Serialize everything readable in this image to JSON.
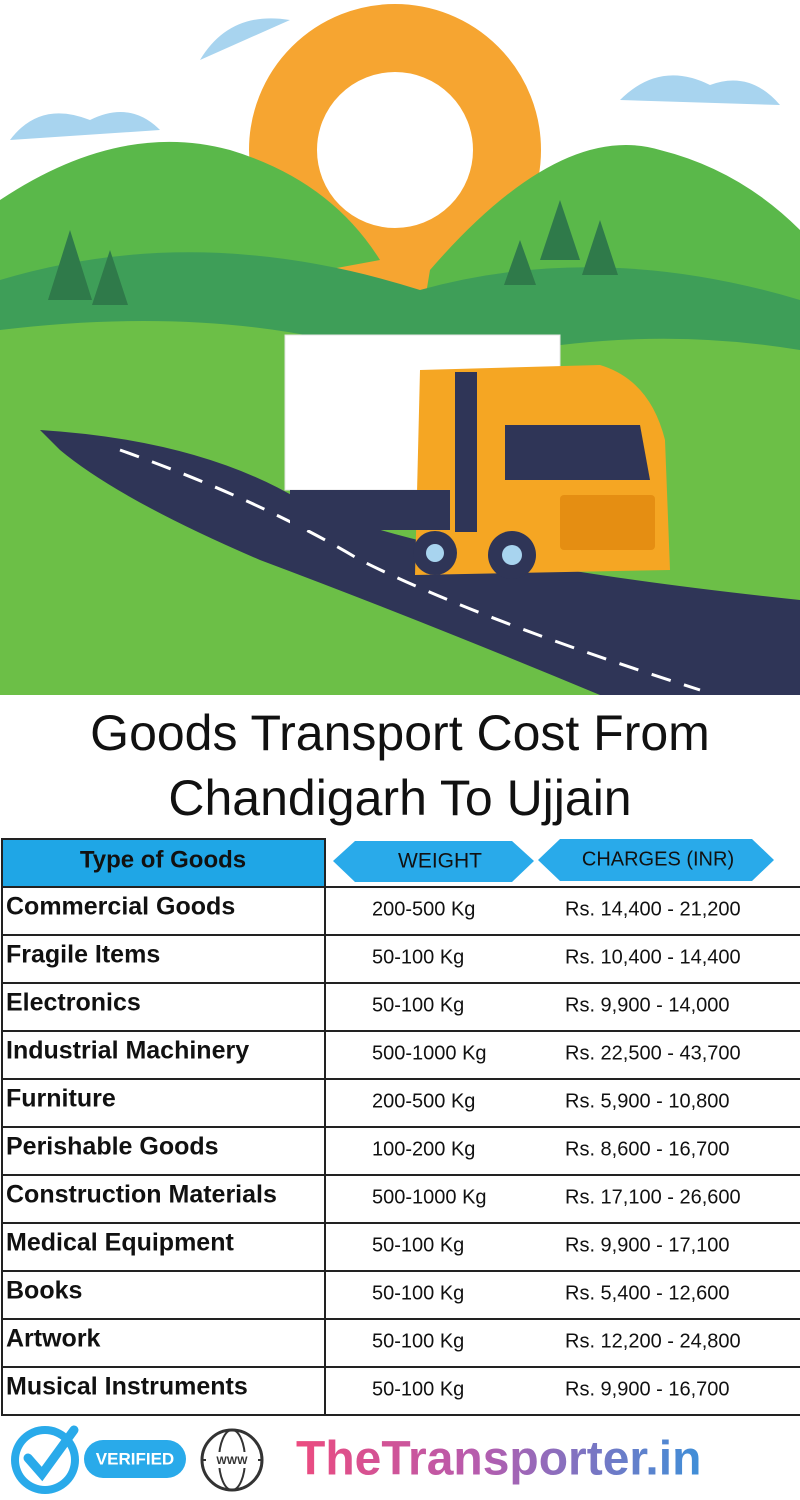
{
  "title": {
    "line1": "Goods Transport Cost From",
    "line2": "Chandigarh To Ujjain"
  },
  "table": {
    "headers": [
      "Type of Goods",
      "WEIGHT",
      "CHARGES (INR)"
    ],
    "rows": [
      [
        "Commercial Goods",
        "200-500 Kg",
        "Rs. 14,400 - 21,200"
      ],
      [
        "Fragile Items",
        "50-100 Kg",
        "Rs. 10,400 - 14,400"
      ],
      [
        "Electronics",
        "50-100 Kg",
        "Rs. 9,900 - 14,000"
      ],
      [
        "Industrial Machinery",
        "500-1000 Kg",
        "Rs. 22,500 - 43,700"
      ],
      [
        "Furniture",
        "200-500 Kg",
        "Rs. 5,900 - 10,800"
      ],
      [
        "Perishable Goods",
        "100-200 Kg",
        "Rs. 8,600 - 16,700"
      ],
      [
        "Construction Materials",
        "500-1000 Kg",
        "Rs. 17,100 - 26,600"
      ],
      [
        "Medical Equipment",
        "50-100 Kg",
        "Rs. 9,900 - 17,100"
      ],
      [
        "Books",
        "50-100 Kg",
        "Rs. 5,400 - 12,600"
      ],
      [
        "Artwork",
        "50-100 Kg",
        "Rs. 12,200 - 24,800"
      ],
      [
        "Musical Instruments",
        "50-100 Kg",
        "Rs. 9,900 - 16,700"
      ]
    ]
  },
  "footer": {
    "badge": "VERIFIED",
    "globe": "WWW",
    "brand": "TheTransporter.in"
  }
}
